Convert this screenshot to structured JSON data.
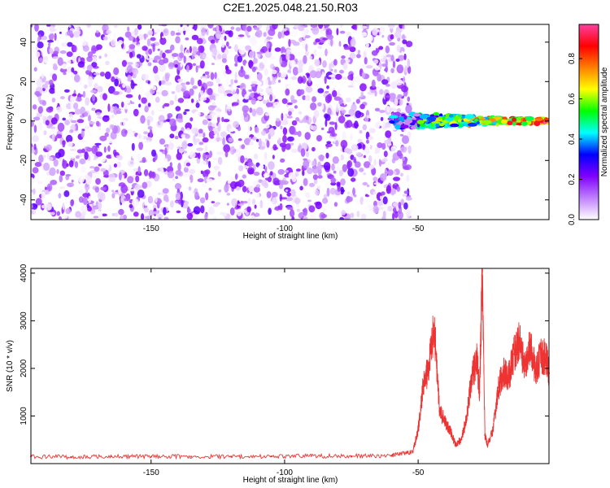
{
  "title": "C2E1.2025.048.21.50.R03",
  "chart_data": [
    {
      "type": "heatmap",
      "xlabel": "Height of straight line (km)",
      "ylabel": "Frequency (Hz)",
      "xlim": [
        -195,
        -1
      ],
      "ylim": [
        -50,
        49
      ],
      "xticks": [
        -150,
        -100,
        -50
      ],
      "yticks": [
        -40,
        -20,
        0,
        20,
        40
      ],
      "colorbar": {
        "label": "Normalized spectral amplitude",
        "range": [
          0,
          0.97
        ],
        "ticks": [
          0.0,
          0.2,
          0.4,
          0.6,
          0.8
        ],
        "tick_labels": [
          "0.0",
          "0.2",
          "0.4",
          "0.6",
          "0.8"
        ],
        "colors": [
          "#ffffff",
          "#c080ff",
          "#8000ff",
          "#0000ff",
          "#00ffff",
          "#00ff00",
          "#ffff00",
          "#ff8000",
          "#ff0000",
          "#ff40a0"
        ]
      },
      "regions": [
        {
          "name": "noise",
          "x_range": [
            -195,
            -53
          ],
          "y_range": [
            -50,
            49
          ],
          "amplitude": [
            0.0,
            0.25
          ]
        },
        {
          "name": "signal",
          "x_range": [
            -60,
            -1
          ],
          "y_center": 0,
          "y_halfwidth": [
            1,
            4
          ],
          "amplitude": [
            0.1,
            0.97
          ]
        }
      ],
      "grid": false
    },
    {
      "type": "line",
      "xlabel": "Height of straight line (km)",
      "ylabel": "SNR (10 * v/v)",
      "xlim": [
        -195,
        -1
      ],
      "ylim": [
        0,
        4100
      ],
      "xticks": [
        -150,
        -100,
        -50
      ],
      "yticks": [
        1000,
        2000,
        3000,
        4000
      ],
      "color": "#ee3333",
      "x": [
        -195,
        -180,
        -165,
        -150,
        -135,
        -120,
        -105,
        -90,
        -75,
        -60,
        -52,
        -50,
        -48,
        -46,
        -44,
        -42,
        -40,
        -38,
        -36,
        -34,
        -32,
        -30,
        -28,
        -27,
        -26,
        -25,
        -24,
        -22,
        -20,
        -18,
        -16,
        -14,
        -12,
        -10,
        -8,
        -6,
        -4,
        -2,
        -1
      ],
      "y": [
        150,
        140,
        150,
        145,
        150,
        150,
        150,
        160,
        155,
        170,
        250,
        700,
        1700,
        2000,
        2900,
        1100,
        900,
        700,
        400,
        500,
        900,
        1800,
        2200,
        1500,
        4050,
        600,
        400,
        700,
        1600,
        1900,
        1850,
        2300,
        2600,
        1950,
        2500,
        1900,
        2300,
        2200,
        1900
      ],
      "grid": false
    }
  ]
}
